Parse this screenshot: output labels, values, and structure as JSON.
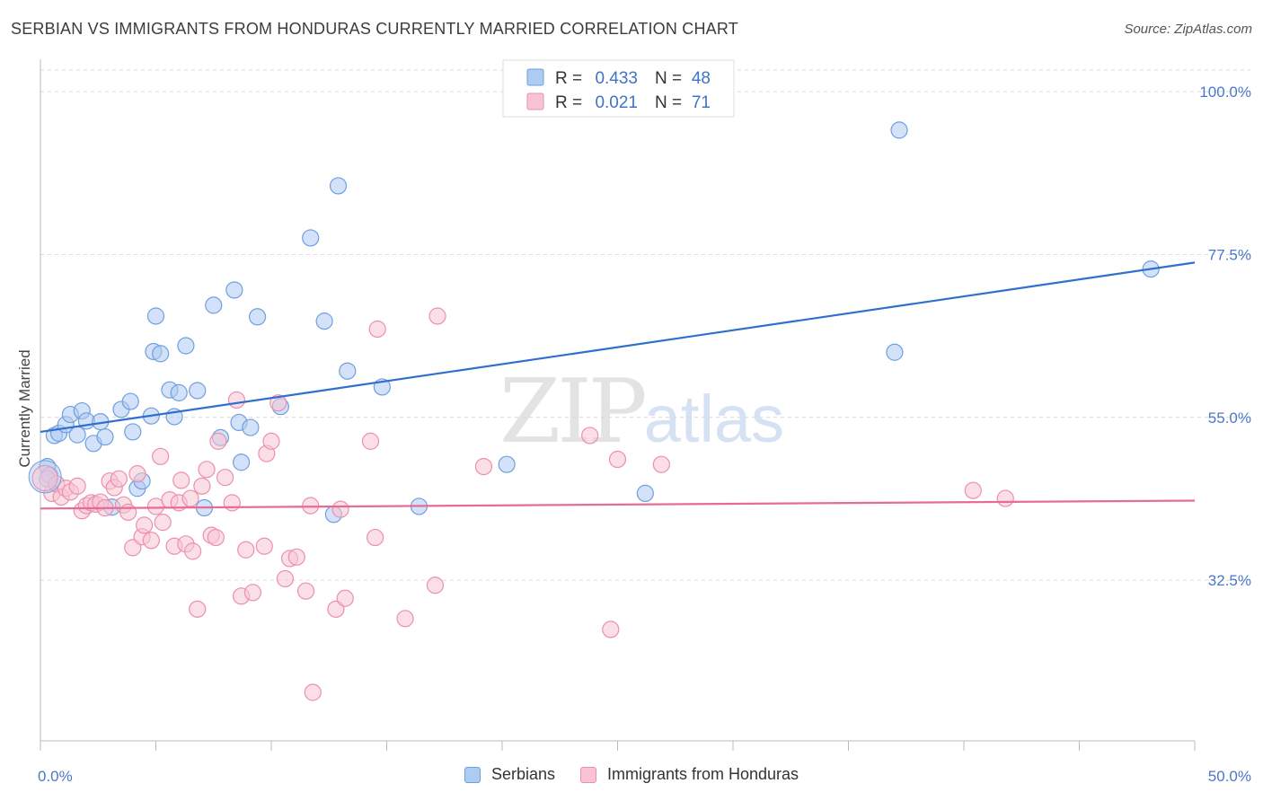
{
  "header": {
    "title": "SERBIAN VS IMMIGRANTS FROM HONDURAS CURRENTLY MARRIED CORRELATION CHART",
    "source": "Source: ZipAtlas.com"
  },
  "watermark": {
    "zip": "ZIP",
    "atlas": "atlas"
  },
  "colors": {
    "serbians_fill": "#aecbf2",
    "serbians_stroke": "#6f9fde",
    "serbians_line": "#2f6fce",
    "honduras_fill": "#f8c4d4",
    "honduras_stroke": "#ec8fae",
    "honduras_line": "#e66b95",
    "tick_label": "#4a78c8",
    "grid": "#d9d9d9"
  },
  "legend": {
    "rows": [
      {
        "r_label": "R = ",
        "r_value": "0.433",
        "n_label": "N = ",
        "n_value": "48"
      },
      {
        "r_label": "R = ",
        "r_value": "0.021",
        "n_label": "N = ",
        "n_value": "71"
      }
    ]
  },
  "bottom_legend": {
    "items": [
      "Serbians",
      "Immigrants from Honduras"
    ]
  },
  "chart_data": {
    "type": "scatter",
    "title": "SERBIAN VS IMMIGRANTS FROM HONDURAS CURRENTLY MARRIED CORRELATION CHART",
    "xlabel": "",
    "ylabel": "Currently Married",
    "x_tick_labels": [
      "0.0%",
      "50.0%"
    ],
    "y_tick_labels": [
      "100.0%",
      "77.5%",
      "55.0%",
      "32.5%"
    ],
    "y_tick_values": [
      100.0,
      77.5,
      55.0,
      32.5
    ],
    "xlim": [
      0,
      50
    ],
    "ylim": [
      10.3,
      103.0
    ],
    "grid": "horizontal dashed",
    "legend_position": "top-center",
    "series": [
      {
        "name": "Serbians",
        "R": 0.433,
        "N": 48,
        "trend": {
          "x": [
            0,
            50
          ],
          "y": [
            53.0,
            76.4
          ]
        },
        "points": [
          [
            0.3,
            48.2
          ],
          [
            0.4,
            47.0
          ],
          [
            0.6,
            52.5
          ],
          [
            0.8,
            52.8
          ],
          [
            1.1,
            54.0
          ],
          [
            1.3,
            55.4
          ],
          [
            1.6,
            52.6
          ],
          [
            1.8,
            55.9
          ],
          [
            2.0,
            54.5
          ],
          [
            2.3,
            51.4
          ],
          [
            2.6,
            54.4
          ],
          [
            2.8,
            52.3
          ],
          [
            3.1,
            42.6
          ],
          [
            3.5,
            56.1
          ],
          [
            3.9,
            57.2
          ],
          [
            4.0,
            53.0
          ],
          [
            4.2,
            45.2
          ],
          [
            4.4,
            46.2
          ],
          [
            4.8,
            55.2
          ],
          [
            4.9,
            64.1
          ],
          [
            5.0,
            69.0
          ],
          [
            5.2,
            63.8
          ],
          [
            5.6,
            58.8
          ],
          [
            5.8,
            55.1
          ],
          [
            6.0,
            58.4
          ],
          [
            6.3,
            64.9
          ],
          [
            6.8,
            58.7
          ],
          [
            7.1,
            42.5
          ],
          [
            7.5,
            70.5
          ],
          [
            7.8,
            52.2
          ],
          [
            8.4,
            72.6
          ],
          [
            8.6,
            54.3
          ],
          [
            8.7,
            48.8
          ],
          [
            9.1,
            53.6
          ],
          [
            9.4,
            68.9
          ],
          [
            10.4,
            56.5
          ],
          [
            11.7,
            79.8
          ],
          [
            12.3,
            68.3
          ],
          [
            12.7,
            41.6
          ],
          [
            12.9,
            87.0
          ],
          [
            13.3,
            61.4
          ],
          [
            14.8,
            59.2
          ],
          [
            16.4,
            42.7
          ],
          [
            20.2,
            48.5
          ],
          [
            26.2,
            44.5
          ],
          [
            37.0,
            64.0
          ],
          [
            37.2,
            94.7
          ],
          [
            48.1,
            75.5
          ]
        ]
      },
      {
        "name": "Immigrants from Honduras",
        "R": 0.021,
        "N": 71,
        "trend": {
          "x": [
            0,
            50
          ],
          "y": [
            42.4,
            43.5
          ]
        },
        "points": [
          [
            0.3,
            46.5
          ],
          [
            0.5,
            44.5
          ],
          [
            0.7,
            45.8
          ],
          [
            0.9,
            44.0
          ],
          [
            1.1,
            45.2
          ],
          [
            1.3,
            44.7
          ],
          [
            1.6,
            45.5
          ],
          [
            1.8,
            42.1
          ],
          [
            2.0,
            42.8
          ],
          [
            2.2,
            43.2
          ],
          [
            2.4,
            43.0
          ],
          [
            2.6,
            43.3
          ],
          [
            2.8,
            42.5
          ],
          [
            3.0,
            46.2
          ],
          [
            3.2,
            45.3
          ],
          [
            3.4,
            46.5
          ],
          [
            3.6,
            42.9
          ],
          [
            3.8,
            41.9
          ],
          [
            4.0,
            37.0
          ],
          [
            4.2,
            47.2
          ],
          [
            4.4,
            38.5
          ],
          [
            4.5,
            40.1
          ],
          [
            4.8,
            38.0
          ],
          [
            5.0,
            42.7
          ],
          [
            5.2,
            49.6
          ],
          [
            5.3,
            40.5
          ],
          [
            5.6,
            43.6
          ],
          [
            5.8,
            37.2
          ],
          [
            6.0,
            43.2
          ],
          [
            6.1,
            46.3
          ],
          [
            6.3,
            37.5
          ],
          [
            6.5,
            43.8
          ],
          [
            6.6,
            36.5
          ],
          [
            6.8,
            28.5
          ],
          [
            7.0,
            45.5
          ],
          [
            7.2,
            47.8
          ],
          [
            7.4,
            38.7
          ],
          [
            7.6,
            38.4
          ],
          [
            7.7,
            51.7
          ],
          [
            8.0,
            46.7
          ],
          [
            8.3,
            43.2
          ],
          [
            8.5,
            57.4
          ],
          [
            8.7,
            30.3
          ],
          [
            8.9,
            36.7
          ],
          [
            9.2,
            30.8
          ],
          [
            9.7,
            37.2
          ],
          [
            9.8,
            50.0
          ],
          [
            10.0,
            51.7
          ],
          [
            10.3,
            57.0
          ],
          [
            10.6,
            32.7
          ],
          [
            10.8,
            35.5
          ],
          [
            11.1,
            35.7
          ],
          [
            11.5,
            31.0
          ],
          [
            11.7,
            42.8
          ],
          [
            11.8,
            17.0
          ],
          [
            12.8,
            28.5
          ],
          [
            13.0,
            42.3
          ],
          [
            13.2,
            30.0
          ],
          [
            14.3,
            51.7
          ],
          [
            14.5,
            38.4
          ],
          [
            14.6,
            67.2
          ],
          [
            15.8,
            27.2
          ],
          [
            17.1,
            31.8
          ],
          [
            17.2,
            69.0
          ],
          [
            19.2,
            48.2
          ],
          [
            23.8,
            52.5
          ],
          [
            24.7,
            25.7
          ],
          [
            25.0,
            49.2
          ],
          [
            26.9,
            48.5
          ],
          [
            40.4,
            44.9
          ],
          [
            41.8,
            43.8
          ]
        ]
      }
    ]
  }
}
